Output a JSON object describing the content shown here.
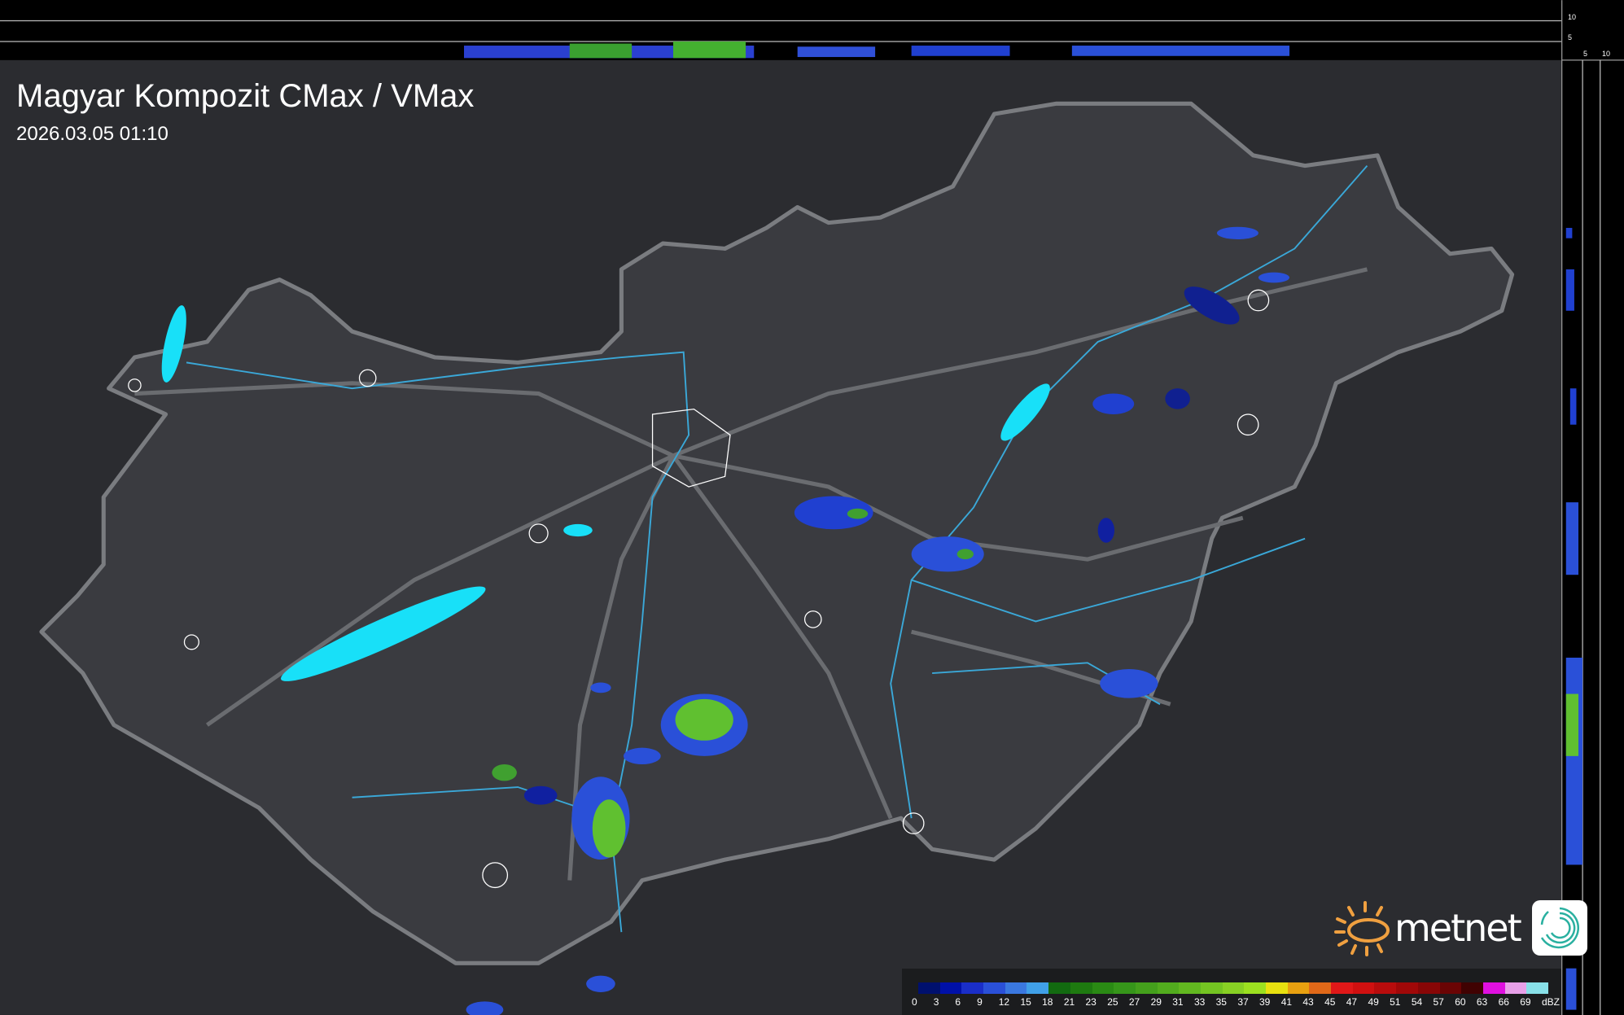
{
  "title": "Magyar Kompozit CMax / VMax",
  "timestamp": "2026.03.05 01:10",
  "profile_axis": {
    "top_ticks": [
      "10",
      "5"
    ],
    "side_ticks": [
      "5",
      "10"
    ]
  },
  "legend": {
    "unit": "dBZ",
    "labels": [
      "0",
      "3",
      "6",
      "9",
      "12",
      "15",
      "18",
      "21",
      "23",
      "25",
      "27",
      "29",
      "31",
      "33",
      "35",
      "37",
      "39",
      "41",
      "43",
      "45",
      "47",
      "49",
      "51",
      "54",
      "57",
      "60",
      "63",
      "66",
      "69"
    ],
    "colors": [
      "#00106e",
      "#0010a8",
      "#1a2ec8",
      "#2a50d8",
      "#3a78e0",
      "#40a0e8",
      "#126a10",
      "#1e7a10",
      "#2a8a14",
      "#36961a",
      "#44a01c",
      "#52ac1e",
      "#62b820",
      "#74c422",
      "#88d024",
      "#9ce020",
      "#e8e010",
      "#e8a010",
      "#e06818",
      "#e01818",
      "#d01010",
      "#b80c0c",
      "#a00808",
      "#880606",
      "#6a0404",
      "#400202",
      "#e010e0",
      "#e8a0e8",
      "#88e0e8"
    ]
  },
  "brand": {
    "name": "metnet",
    "sun_color": "#f0a040",
    "icon_color": "#2ab0a0"
  },
  "colors": {
    "background": "#2b2c30",
    "country": "#3a3b40",
    "border": "#7a7c80",
    "rivers": "#3aa8d8",
    "lakes": "#18e0f8"
  }
}
